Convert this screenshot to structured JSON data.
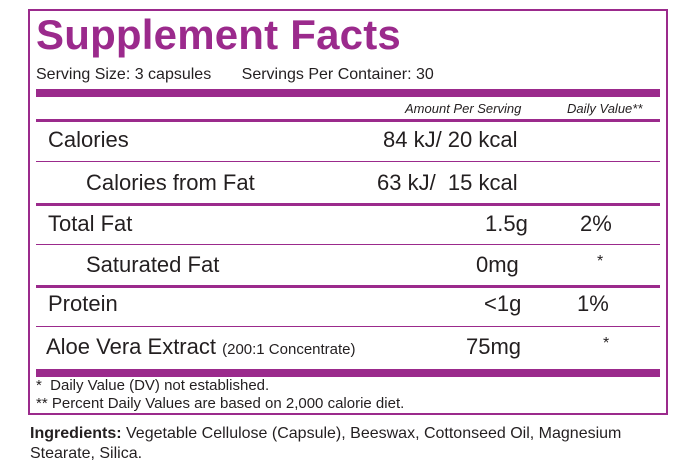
{
  "title": "Supplement Facts",
  "serving": {
    "size": "Serving Size: 3 capsules",
    "per_container": "Servings Per Container: 30"
  },
  "columns": {
    "amount": "Amount Per Serving",
    "daily_value": "Daily Value**"
  },
  "rows": [
    {
      "name": "Calories",
      "amount": "84 kJ/ 20 kcal",
      "dv": ""
    },
    {
      "name": "Calories from Fat",
      "amount": "63 kJ/  15 kcal",
      "dv": ""
    },
    {
      "name": "Total Fat",
      "amount": "1.5g",
      "dv": "2%"
    },
    {
      "name": "Saturated Fat",
      "amount": "0mg",
      "dv": "*"
    },
    {
      "name": "Protein",
      "amount": "<1g",
      "dv": "1%"
    },
    {
      "name": "Aloe Vera Extract",
      "note": "(200:1 Concentrate)",
      "amount": "75mg",
      "dv": "*"
    }
  ],
  "footnotes": [
    "*  Daily Value (DV) not established.",
    "** Percent Daily Values are based on 2,000 calorie diet."
  ],
  "ingredients": {
    "label": "Ingredients:",
    "text": " Vegetable Cellulose (Capsule), Beeswax, Cottonseed Oil, Magnesium Stearate, Silica."
  },
  "colors": {
    "accent": "#9b2a8c",
    "text": "#231f20"
  }
}
